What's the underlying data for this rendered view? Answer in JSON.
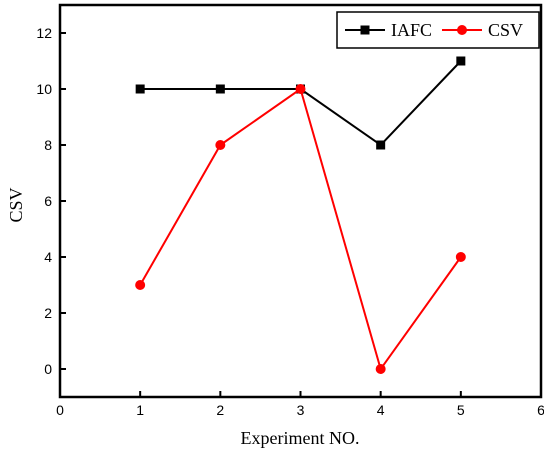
{
  "chart_data": {
    "type": "line",
    "title": "",
    "xlabel": "Experiment NO.",
    "ylabel": "CSV",
    "xlim": [
      0,
      6
    ],
    "ylim": [
      -1,
      13
    ],
    "xticks": [
      0,
      1,
      2,
      3,
      4,
      5,
      6
    ],
    "yticks": [
      0,
      2,
      4,
      6,
      8,
      10,
      12
    ],
    "x": [
      1,
      2,
      3,
      4,
      5
    ],
    "grid": false,
    "legend_position": "top-right",
    "series": [
      {
        "name": "IAFC",
        "values": [
          10,
          10,
          10,
          8,
          11
        ],
        "color": "#000000",
        "marker": "square"
      },
      {
        "name": "CSV",
        "values": [
          3,
          8,
          10,
          0,
          4
        ],
        "color": "#ff0000",
        "marker": "circle"
      }
    ]
  }
}
